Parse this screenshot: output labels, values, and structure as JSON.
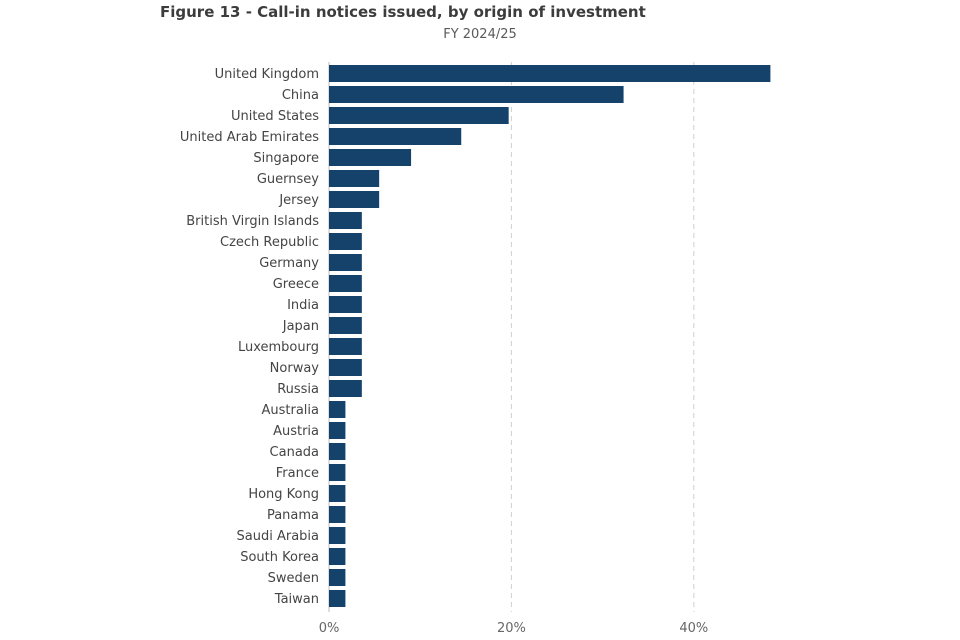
{
  "figure": {
    "title": "Figure 13 - Call-in notices issued, by origin of investment",
    "subtitle": "FY 2024/25"
  },
  "colors": {
    "bar": "#14426b"
  },
  "chart_data": {
    "type": "bar",
    "orientation": "horizontal",
    "title": "Figure 13 - Call-in notices issued, by origin of investment",
    "subtitle": "FY 2024/25",
    "xlabel": "",
    "ylabel": "",
    "unit": "%",
    "categories": [
      "United Kingdom",
      "China",
      "United States",
      "United Arab Emirates",
      "Singapore",
      "Guernsey",
      "Jersey",
      "British Virgin Islands",
      "Czech Republic",
      "Germany",
      "Greece",
      "India",
      "Japan",
      "Luxembourg",
      "Norway",
      "Russia",
      "Australia",
      "Austria",
      "Canada",
      "France",
      "Hong Kong",
      "Panama",
      "Saudi Arabia",
      "South Korea",
      "Sweden",
      "Taiwan"
    ],
    "values": [
      48.4,
      32.3,
      19.7,
      14.5,
      9.0,
      5.5,
      5.5,
      3.6,
      3.6,
      3.6,
      3.6,
      3.6,
      3.6,
      3.6,
      3.6,
      3.6,
      1.8,
      1.8,
      1.8,
      1.8,
      1.8,
      1.8,
      1.8,
      1.8,
      1.8,
      1.8
    ],
    "xticks": [
      0,
      20,
      40
    ],
    "xtick_labels": [
      "0%",
      "20%",
      "40%"
    ],
    "xlim": [
      0,
      50
    ],
    "grid": true
  }
}
